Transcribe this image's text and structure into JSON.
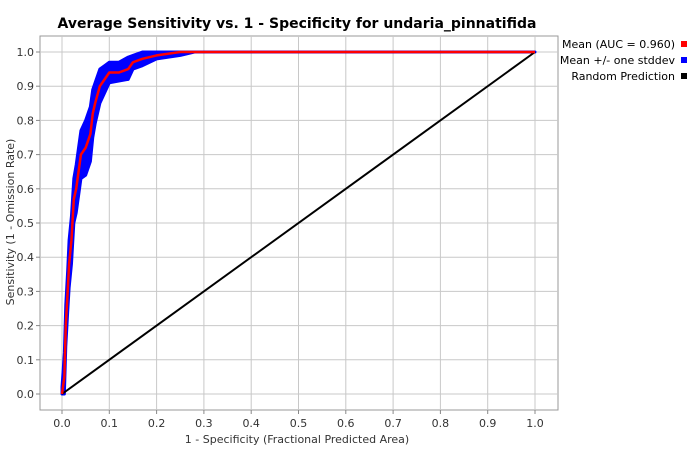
{
  "chart_data": {
    "type": "line",
    "title": "Average Sensitivity vs. 1 - Specificity for undaria_pinnatifida",
    "xlabel": "1 - Specificity (Fractional Predicted Area)",
    "ylabel": "Sensitivity (1 - Omission Rate)",
    "xlim": [
      0,
      1
    ],
    "ylim": [
      0,
      1
    ],
    "xticks": [
      "0.0",
      "0.1",
      "0.2",
      "0.3",
      "0.4",
      "0.5",
      "0.6",
      "0.7",
      "0.8",
      "0.9",
      "1.0"
    ],
    "yticks": [
      "0.0",
      "0.1",
      "0.2",
      "0.3",
      "0.4",
      "0.5",
      "0.6",
      "0.7",
      "0.8",
      "0.9",
      "1.0"
    ],
    "grid": true,
    "legend_position": "right",
    "series": [
      {
        "name": "Mean (AUC = 0.960)",
        "color": "#ff0000",
        "x": [
          0,
          0.005,
          0.008,
          0.012,
          0.015,
          0.02,
          0.025,
          0.03,
          0.035,
          0.04,
          0.05,
          0.06,
          0.065,
          0.07,
          0.08,
          0.09,
          0.1,
          0.12,
          0.14,
          0.15,
          0.17,
          0.2,
          0.25,
          0.3,
          1.0
        ],
        "y": [
          0,
          0.05,
          0.2,
          0.3,
          0.38,
          0.45,
          0.57,
          0.6,
          0.65,
          0.7,
          0.72,
          0.76,
          0.82,
          0.85,
          0.9,
          0.92,
          0.94,
          0.94,
          0.95,
          0.97,
          0.98,
          0.99,
          1.0,
          1.0,
          1.0
        ]
      },
      {
        "name": "Mean +/- one stddev",
        "color": "#0000ff",
        "x": [
          0,
          0.005,
          0.008,
          0.012,
          0.015,
          0.02,
          0.025,
          0.03,
          0.035,
          0.04,
          0.05,
          0.06,
          0.065,
          0.07,
          0.08,
          0.09,
          0.1,
          0.12,
          0.14,
          0.15,
          0.17,
          0.2,
          0.25,
          0.28
        ],
        "upper": [
          0.02,
          0.12,
          0.26,
          0.36,
          0.45,
          0.52,
          0.63,
          0.67,
          0.72,
          0.77,
          0.8,
          0.84,
          0.89,
          0.91,
          0.95,
          0.96,
          0.97,
          0.97,
          0.985,
          0.99,
          1.0,
          1.0,
          1.0,
          1.0
        ],
        "lower": [
          0,
          0.0,
          0.14,
          0.24,
          0.31,
          0.38,
          0.5,
          0.53,
          0.58,
          0.63,
          0.64,
          0.68,
          0.75,
          0.79,
          0.85,
          0.88,
          0.91,
          0.915,
          0.92,
          0.95,
          0.96,
          0.98,
          0.99,
          1.0
        ]
      },
      {
        "name": "Random Prediction",
        "color": "#000000",
        "x": [
          0,
          1
        ],
        "y": [
          0,
          1
        ]
      }
    ]
  }
}
